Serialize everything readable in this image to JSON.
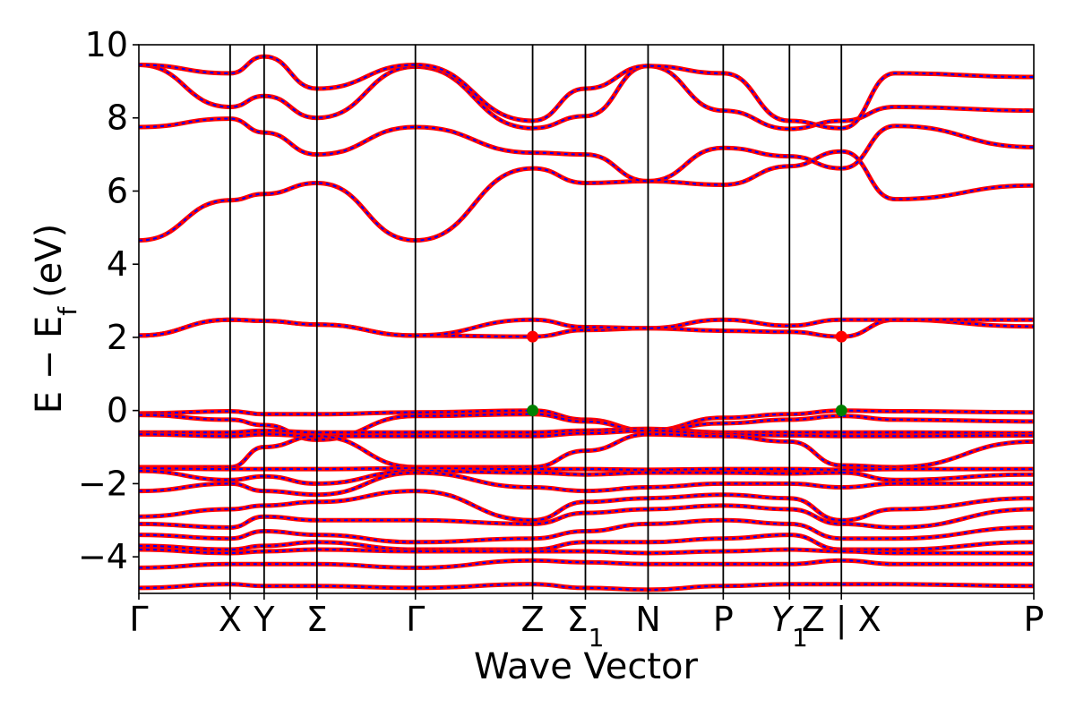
{
  "chart_data": {
    "type": "line",
    "xlabel": "Wave Vector",
    "ylabel": "E − E",
    "ylabel_sub": "f",
    "ylabel_unit": "(eV)",
    "ylim": [
      -5,
      10
    ],
    "yticks": [
      {
        "value": -4,
        "label": "−4"
      },
      {
        "value": -2,
        "label": "−2"
      },
      {
        "value": 0,
        "label": "0"
      },
      {
        "value": 2,
        "label": "2"
      },
      {
        "value": 4,
        "label": "4"
      },
      {
        "value": 6,
        "label": "6"
      },
      {
        "value": 8,
        "label": "8"
      },
      {
        "value": 10,
        "label": "10"
      }
    ],
    "xlim": [
      0,
      10
    ],
    "kpoints": [
      {
        "label": "Γ",
        "sub": "",
        "x": 0.0
      },
      {
        "label": "X",
        "sub": "",
        "x": 1.02
      },
      {
        "label": "Y",
        "sub": "",
        "x": 1.4
      },
      {
        "label": "Σ",
        "sub": "",
        "x": 1.99
      },
      {
        "label": "Γ",
        "sub": "",
        "x": 3.09
      },
      {
        "label": "Z",
        "sub": "",
        "x": 4.4
      },
      {
        "label": "Σ",
        "sub": "1",
        "x": 4.99
      },
      {
        "label": "N",
        "sub": "",
        "x": 5.69
      },
      {
        "label": "P",
        "sub": "",
        "x": 6.53
      },
      {
        "label": "Y",
        "sub": "1",
        "x": 7.27
      },
      {
        "label": "Z | X",
        "sub": "",
        "x": 7.85
      },
      {
        "label": "P",
        "sub": "",
        "x": 10.0
      }
    ],
    "grid": false,
    "series_style": {
      "solid_color": "#ff0000",
      "dashed_color": "#0000ff"
    },
    "bands": [
      [
        4.65,
        5.75,
        5.92,
        6.22,
        4.65,
        6.62,
        6.22,
        6.27,
        6.17,
        6.68,
        7.08,
        5.78,
        6.15
      ],
      [
        7.75,
        7.98,
        7.6,
        7.0,
        7.75,
        7.05,
        7.0,
        6.27,
        7.18,
        6.95,
        6.62,
        7.78,
        7.2
      ],
      [
        9.45,
        8.3,
        8.6,
        8.0,
        9.4,
        7.72,
        8.05,
        9.42,
        8.2,
        7.7,
        7.92,
        8.3,
        8.2
      ],
      [
        9.45,
        9.22,
        9.68,
        8.8,
        9.45,
        7.92,
        8.8,
        9.42,
        9.22,
        7.92,
        7.72,
        9.22,
        9.12
      ],
      [
        2.05,
        2.48,
        2.45,
        2.35,
        2.05,
        2.02,
        2.2,
        2.25,
        2.18,
        2.15,
        2.02,
        2.48,
        2.3
      ],
      [
        2.05,
        2.48,
        2.45,
        2.35,
        2.05,
        2.48,
        2.28,
        2.25,
        2.48,
        2.32,
        2.48,
        2.48,
        2.48
      ],
      [
        -0.08,
        -0.02,
        -0.1,
        -0.1,
        -0.05,
        0.0,
        -0.25,
        -0.55,
        -0.2,
        -0.1,
        0.0,
        -0.02,
        -0.05
      ],
      [
        -0.12,
        -0.25,
        -0.4,
        -0.8,
        -0.15,
        -0.1,
        -0.3,
        -0.55,
        -0.35,
        -0.25,
        -0.15,
        -0.25,
        -0.3
      ],
      [
        -0.6,
        -0.6,
        -0.55,
        -0.6,
        -0.6,
        -0.6,
        -0.55,
        -0.5,
        -0.6,
        -0.6,
        -0.6,
        -0.6,
        -0.62
      ],
      [
        -0.65,
        -0.7,
        -0.65,
        -0.7,
        -0.7,
        -0.7,
        -0.62,
        -0.55,
        -0.65,
        -0.68,
        -0.7,
        -0.7,
        -0.68
      ],
      [
        -1.55,
        -1.55,
        -1.0,
        -0.7,
        -1.55,
        -1.55,
        -1.1,
        -0.65,
        -0.7,
        -0.85,
        -1.5,
        -1.55,
        -0.85
      ],
      [
        -1.58,
        -1.6,
        -1.6,
        -1.6,
        -1.58,
        -1.6,
        -1.6,
        -1.62,
        -1.6,
        -1.6,
        -1.62,
        -1.6,
        -1.6
      ],
      [
        -1.65,
        -1.9,
        -1.8,
        -2.0,
        -1.65,
        -1.7,
        -1.75,
        -1.7,
        -1.7,
        -1.72,
        -1.7,
        -1.9,
        -1.75
      ],
      [
        -2.2,
        -2.0,
        -2.2,
        -2.3,
        -1.7,
        -2.1,
        -2.2,
        -2.1,
        -2.0,
        -2.0,
        -2.1,
        -2.0,
        -2.0
      ],
      [
        -2.9,
        -2.7,
        -2.6,
        -2.5,
        -2.2,
        -3.0,
        -2.5,
        -2.4,
        -2.3,
        -2.4,
        -3.0,
        -2.7,
        -2.4
      ],
      [
        -3.1,
        -3.2,
        -2.9,
        -3.0,
        -3.0,
        -3.1,
        -2.8,
        -2.7,
        -2.6,
        -2.7,
        -3.1,
        -3.2,
        -2.7
      ],
      [
        -3.4,
        -3.5,
        -3.3,
        -3.4,
        -3.6,
        -3.5,
        -3.3,
        -3.1,
        -3.0,
        -3.1,
        -3.5,
        -3.5,
        -3.2
      ],
      [
        -3.7,
        -3.8,
        -3.7,
        -3.6,
        -3.8,
        -3.8,
        -3.6,
        -3.6,
        -3.5,
        -3.4,
        -3.8,
        -3.8,
        -3.6
      ],
      [
        -3.8,
        -3.9,
        -3.85,
        -3.8,
        -3.85,
        -3.85,
        -3.85,
        -3.9,
        -3.85,
        -3.8,
        -3.85,
        -3.9,
        -3.9
      ],
      [
        -4.3,
        -4.2,
        -4.2,
        -4.2,
        -4.3,
        -4.1,
        -4.15,
        -4.2,
        -4.2,
        -4.2,
        -4.1,
        -4.2,
        -4.2
      ],
      [
        -4.85,
        -4.75,
        -4.8,
        -4.8,
        -4.85,
        -4.75,
        -4.85,
        -4.9,
        -4.8,
        -4.75,
        -4.75,
        -4.75,
        -4.8
      ]
    ],
    "markers": [
      {
        "x": 4.4,
        "y": 2.02,
        "color": "#ff0000"
      },
      {
        "x": 4.4,
        "y": 0.0,
        "color": "#008000"
      },
      {
        "x": 7.85,
        "y": 2.02,
        "color": "#ff0000"
      },
      {
        "x": 7.85,
        "y": 0.0,
        "color": "#008000"
      }
    ]
  }
}
